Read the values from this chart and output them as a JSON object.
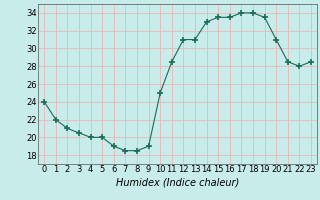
{
  "x": [
    0,
    1,
    2,
    3,
    4,
    5,
    6,
    7,
    8,
    9,
    10,
    11,
    12,
    13,
    14,
    15,
    16,
    17,
    18,
    19,
    20,
    21,
    22,
    23
  ],
  "y": [
    24,
    22,
    21,
    20.5,
    20,
    20,
    19,
    18.5,
    18.5,
    19,
    25,
    28.5,
    31,
    31,
    33,
    33.5,
    33.5,
    34,
    34,
    33.5,
    31,
    28.5,
    28,
    28.5
  ],
  "line_color": "#1a6b5a",
  "marker": "+",
  "marker_size": 4,
  "bg_color": "#c8ecea",
  "grid_color": "#e8b8b8",
  "xlabel": "Humidex (Indice chaleur)",
  "xlabel_fontsize": 7,
  "tick_fontsize": 6,
  "ylim": [
    17,
    35
  ],
  "yticks": [
    18,
    20,
    22,
    24,
    26,
    28,
    30,
    32,
    34
  ],
  "xlim": [
    -0.5,
    23.5
  ],
  "xticks": [
    0,
    1,
    2,
    3,
    4,
    5,
    6,
    7,
    8,
    9,
    10,
    11,
    12,
    13,
    14,
    15,
    16,
    17,
    18,
    19,
    20,
    21,
    22,
    23
  ]
}
